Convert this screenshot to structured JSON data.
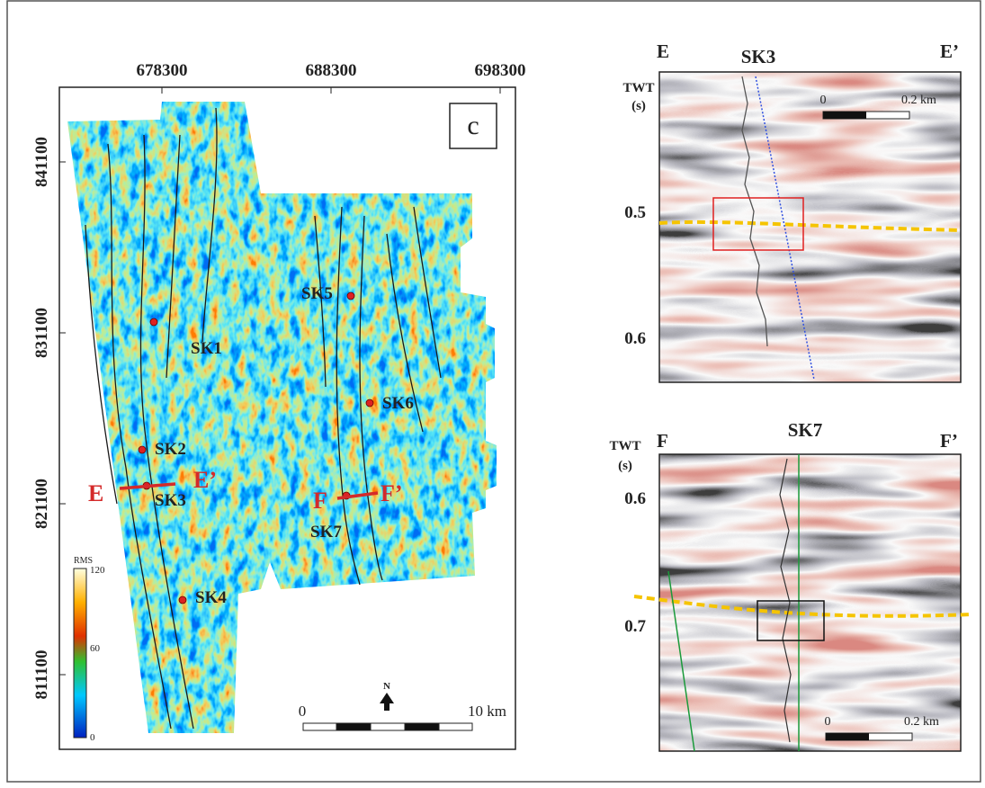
{
  "map": {
    "panel_label": "c",
    "x_ticks": [
      678300,
      688300,
      698300
    ],
    "y_ticks": [
      841100,
      831100,
      821100,
      811100
    ],
    "wells": [
      "SK1",
      "SK2",
      "SK3",
      "SK4",
      "SK5",
      "SK6",
      "SK7"
    ],
    "section_lines": [
      {
        "start": "E",
        "end": "E’"
      },
      {
        "start": "F",
        "end": "F’"
      }
    ],
    "colorbar": {
      "title": "RMS",
      "ticks": [
        0,
        60,
        120
      ]
    },
    "scale_bar": {
      "start": 0,
      "end": "10 km"
    },
    "north": "N"
  },
  "sections": [
    {
      "start": "E",
      "end": "E’",
      "well": "SK3",
      "axis_label": [
        "TWT",
        "(s)"
      ],
      "ticks": [
        0.5,
        0.6
      ],
      "scale_start": 0,
      "scale_end": "0.2 km"
    },
    {
      "start": "F",
      "end": "F’",
      "well": "SK7",
      "axis_label": [
        "TWT",
        "(s)"
      ],
      "ticks": [
        0.6,
        0.7
      ],
      "scale_start": 0,
      "scale_end": "0.2 km"
    }
  ]
}
